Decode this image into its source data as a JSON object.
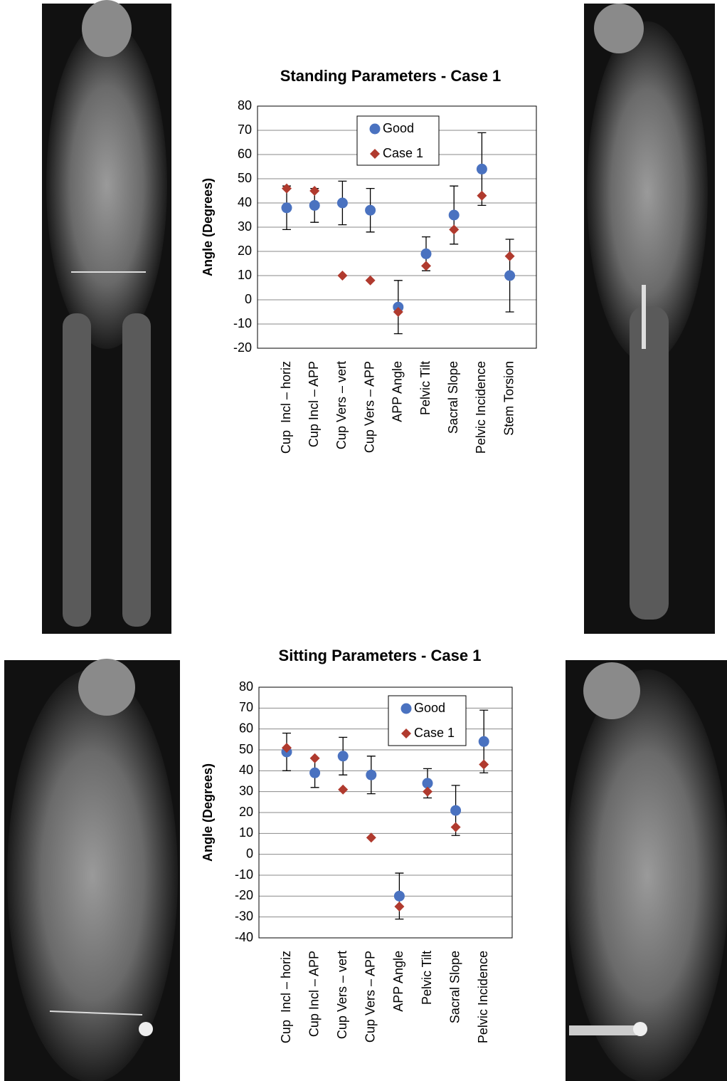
{
  "chart_data": [
    {
      "type": "scatter-errorbar",
      "title": "Standing Parameters - Case 1",
      "y_label": "Angle (Degrees)",
      "categories": [
        "Cup  Incl – horiz",
        "Cup Incl – APP",
        "Cup Vers – vert",
        "Cup Vers – APP",
        "APP Angle",
        "Pelvic Tilt",
        "Sacral Slope",
        "Pelvic Incidence",
        "Stem Torsion"
      ],
      "series": [
        {
          "name": "Good",
          "color": "#4a72c0",
          "marker": "circle",
          "values": [
            38,
            39,
            40,
            37,
            -3,
            19,
            35,
            54,
            10
          ],
          "error": [
            9,
            7,
            9,
            9,
            11,
            7,
            12,
            15,
            15
          ]
        },
        {
          "name": "Case 1",
          "color": "#b03a2e",
          "marker": "diamond",
          "values": [
            46,
            45,
            10,
            8,
            -5,
            14,
            29,
            43,
            18
          ]
        }
      ],
      "ylim": [
        -20,
        80
      ],
      "yticks": [
        -20,
        -10,
        0,
        10,
        20,
        30,
        40,
        50,
        60,
        70,
        80
      ],
      "grid": true
    },
    {
      "type": "scatter-errorbar",
      "title": "Sitting Parameters - Case 1",
      "y_label": "Angle (Degrees)",
      "categories": [
        "Cup  Incl – horiz",
        "Cup Incl – APP",
        "Cup Vers – vert",
        "Cup Vers – APP",
        "APP Angle",
        "Pelvic Tilt",
        "Sacral Slope",
        "Pelvic Incidence"
      ],
      "series": [
        {
          "name": "Good",
          "color": "#4a72c0",
          "marker": "circle",
          "values": [
            49,
            39,
            47,
            38,
            -20,
            34,
            21,
            54
          ],
          "error": [
            9,
            7,
            9,
            9,
            11,
            7,
            12,
            15
          ]
        },
        {
          "name": "Case 1",
          "color": "#b03a2e",
          "marker": "diamond",
          "values": [
            51,
            46,
            31,
            8,
            -25,
            30,
            13,
            43
          ]
        }
      ],
      "ylim": [
        -40,
        80
      ],
      "yticks": [
        -40,
        -30,
        -20,
        -10,
        0,
        10,
        20,
        30,
        40,
        50,
        60,
        70,
        80
      ],
      "grid": true
    }
  ]
}
